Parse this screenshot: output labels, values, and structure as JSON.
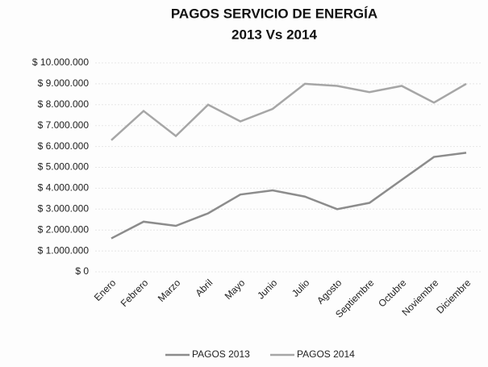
{
  "chart_data": {
    "type": "line",
    "title": [
      "PAGOS  SERVICIO DE ENERGÍA",
      "2013 Vs 2014"
    ],
    "categories": [
      "Enero",
      "Febrero",
      "Marzo",
      "Abril",
      "Mayo",
      "Junio",
      "Julio",
      "Agosto",
      "Septiembre",
      "Octubre",
      "Noviembre",
      "Diciembre"
    ],
    "series": [
      {
        "name": "PAGOS 2013",
        "color": "#8c8c8c",
        "values": [
          1600000,
          2400000,
          2200000,
          2800000,
          3700000,
          3900000,
          3600000,
          3000000,
          3300000,
          4400000,
          5500000,
          5700000
        ]
      },
      {
        "name": "PAGOS 2014",
        "color": "#a6a6a6",
        "values": [
          6300000,
          7700000,
          6500000,
          8000000,
          7200000,
          7800000,
          9000000,
          8900000,
          8600000,
          8900000,
          8100000,
          9000000
        ]
      }
    ],
    "ylim": [
      0,
      10000000
    ],
    "yticks": [
      {
        "value": 0,
        "label": "$ 0"
      },
      {
        "value": 1000000,
        "label": "$ 1.000.000"
      },
      {
        "value": 2000000,
        "label": "$ 2.000.000"
      },
      {
        "value": 3000000,
        "label": "$ 3.000.000"
      },
      {
        "value": 4000000,
        "label": "$ 4.000.000"
      },
      {
        "value": 5000000,
        "label": "$ 5.000.000"
      },
      {
        "value": 6000000,
        "label": "$ 6.000.000"
      },
      {
        "value": 7000000,
        "label": "$ 7.000.000"
      },
      {
        "value": 8000000,
        "label": "$ 8.000.000"
      },
      {
        "value": 9000000,
        "label": "$ 9.000.000"
      },
      {
        "value": 10000000,
        "label": "$ 10.000.000"
      }
    ],
    "grid": true,
    "legend": "bottom"
  }
}
